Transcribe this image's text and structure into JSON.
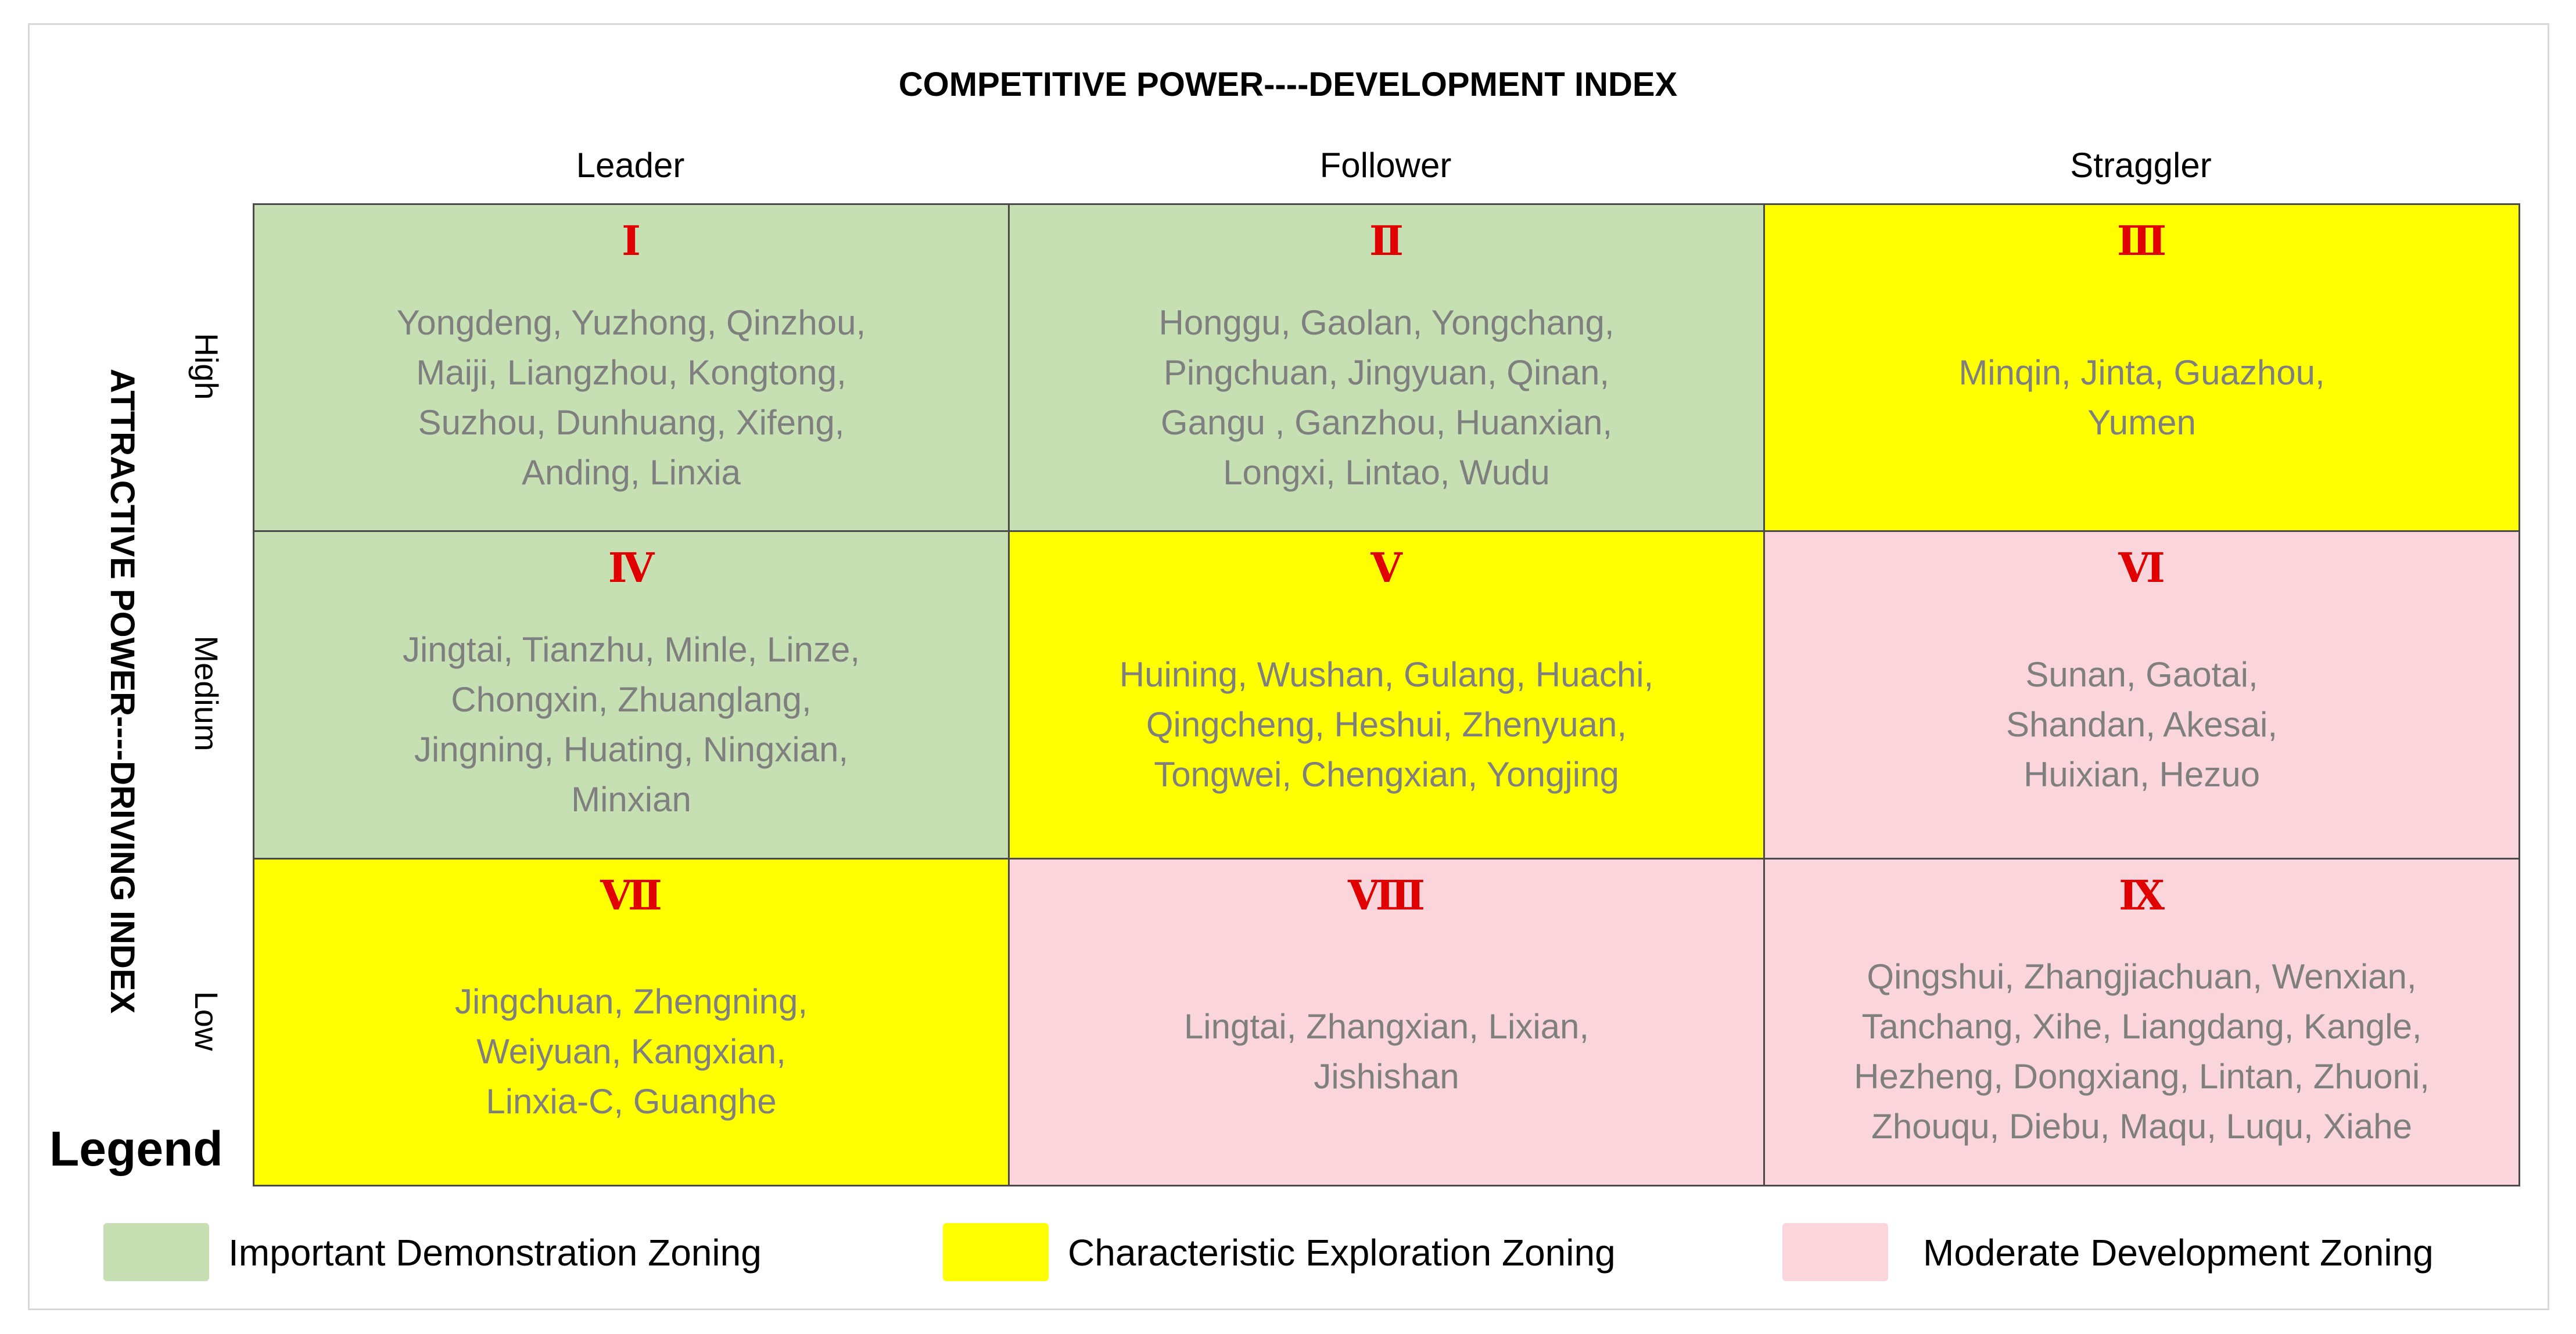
{
  "title": "COMPETITIVE POWER----DEVELOPMENT INDEX",
  "y_axis_title": "ATTRACTIVE POWER----DRIVING INDEX",
  "columns": [
    "Leader",
    "Follower",
    "Straggler"
  ],
  "rows": [
    "High",
    "Medium",
    "Low"
  ],
  "cells": [
    {
      "numeral": "Ⅰ",
      "zone": "important",
      "lines": [
        "Yongdeng, Yuzhong, Qinzhou,",
        "Maiji, Liangzhou, Kongtong,",
        "Suzhou, Dunhuang, Xifeng,",
        "Anding, Linxia"
      ]
    },
    {
      "numeral": "Ⅱ",
      "zone": "important",
      "lines": [
        "Honggu, Gaolan, Yongchang,",
        "Pingchuan, Jingyuan, Qinan,",
        "Gangu , Ganzhou, Huanxian,",
        "Longxi, Lintao, Wudu"
      ]
    },
    {
      "numeral": "Ⅲ",
      "zone": "characteristic",
      "lines": [
        "Minqin, Jinta, Guazhou,",
        "Yumen"
      ]
    },
    {
      "numeral": "Ⅳ",
      "zone": "important",
      "lines": [
        "Jingtai, Tianzhu, Minle, Linze,",
        "Chongxin, Zhuanglang,",
        "Jingning, Huating, Ningxian,",
        "Minxian"
      ]
    },
    {
      "numeral": "Ⅴ",
      "zone": "characteristic",
      "lines": [
        "Huining, Wushan, Gulang, Huachi,",
        "Qingcheng, Heshui, Zhenyuan,",
        "Tongwei, Chengxian, Yongjing"
      ]
    },
    {
      "numeral": "Ⅵ",
      "zone": "moderate",
      "lines": [
        "Sunan, Gaotai,",
        "Shandan, Akesai,",
        "Huixian, Hezuo"
      ]
    },
    {
      "numeral": "Ⅶ",
      "zone": "characteristic",
      "lines": [
        "Jingchuan, Zhengning,",
        "Weiyuan, Kangxian,",
        "Linxia-C, Guanghe"
      ]
    },
    {
      "numeral": "Ⅷ",
      "zone": "moderate",
      "lines": [
        "Lingtai, Zhangxian, Lixian,",
        "Jishishan"
      ]
    },
    {
      "numeral": "Ⅸ",
      "zone": "moderate",
      "lines": [
        "Qingshui, Zhangjiachuan, Wenxian,",
        "Tanchang, Xihe, Liangdang, Kangle,",
        "Hezheng, Dongxiang, Lintan, Zhuoni,",
        "Zhouqu, Diebu, Maqu, Luqu, Xiahe"
      ]
    }
  ],
  "legend": {
    "title": "Legend",
    "items": [
      {
        "zone": "important",
        "label": "Important Demonstration Zoning",
        "color": "#c6e0b4"
      },
      {
        "zone": "characteristic",
        "label": "Characteristic Exploration Zoning",
        "color": "#ffff00"
      },
      {
        "zone": "moderate",
        "label": "Moderate Development Zoning",
        "color": "#fbd5dc"
      }
    ]
  }
}
